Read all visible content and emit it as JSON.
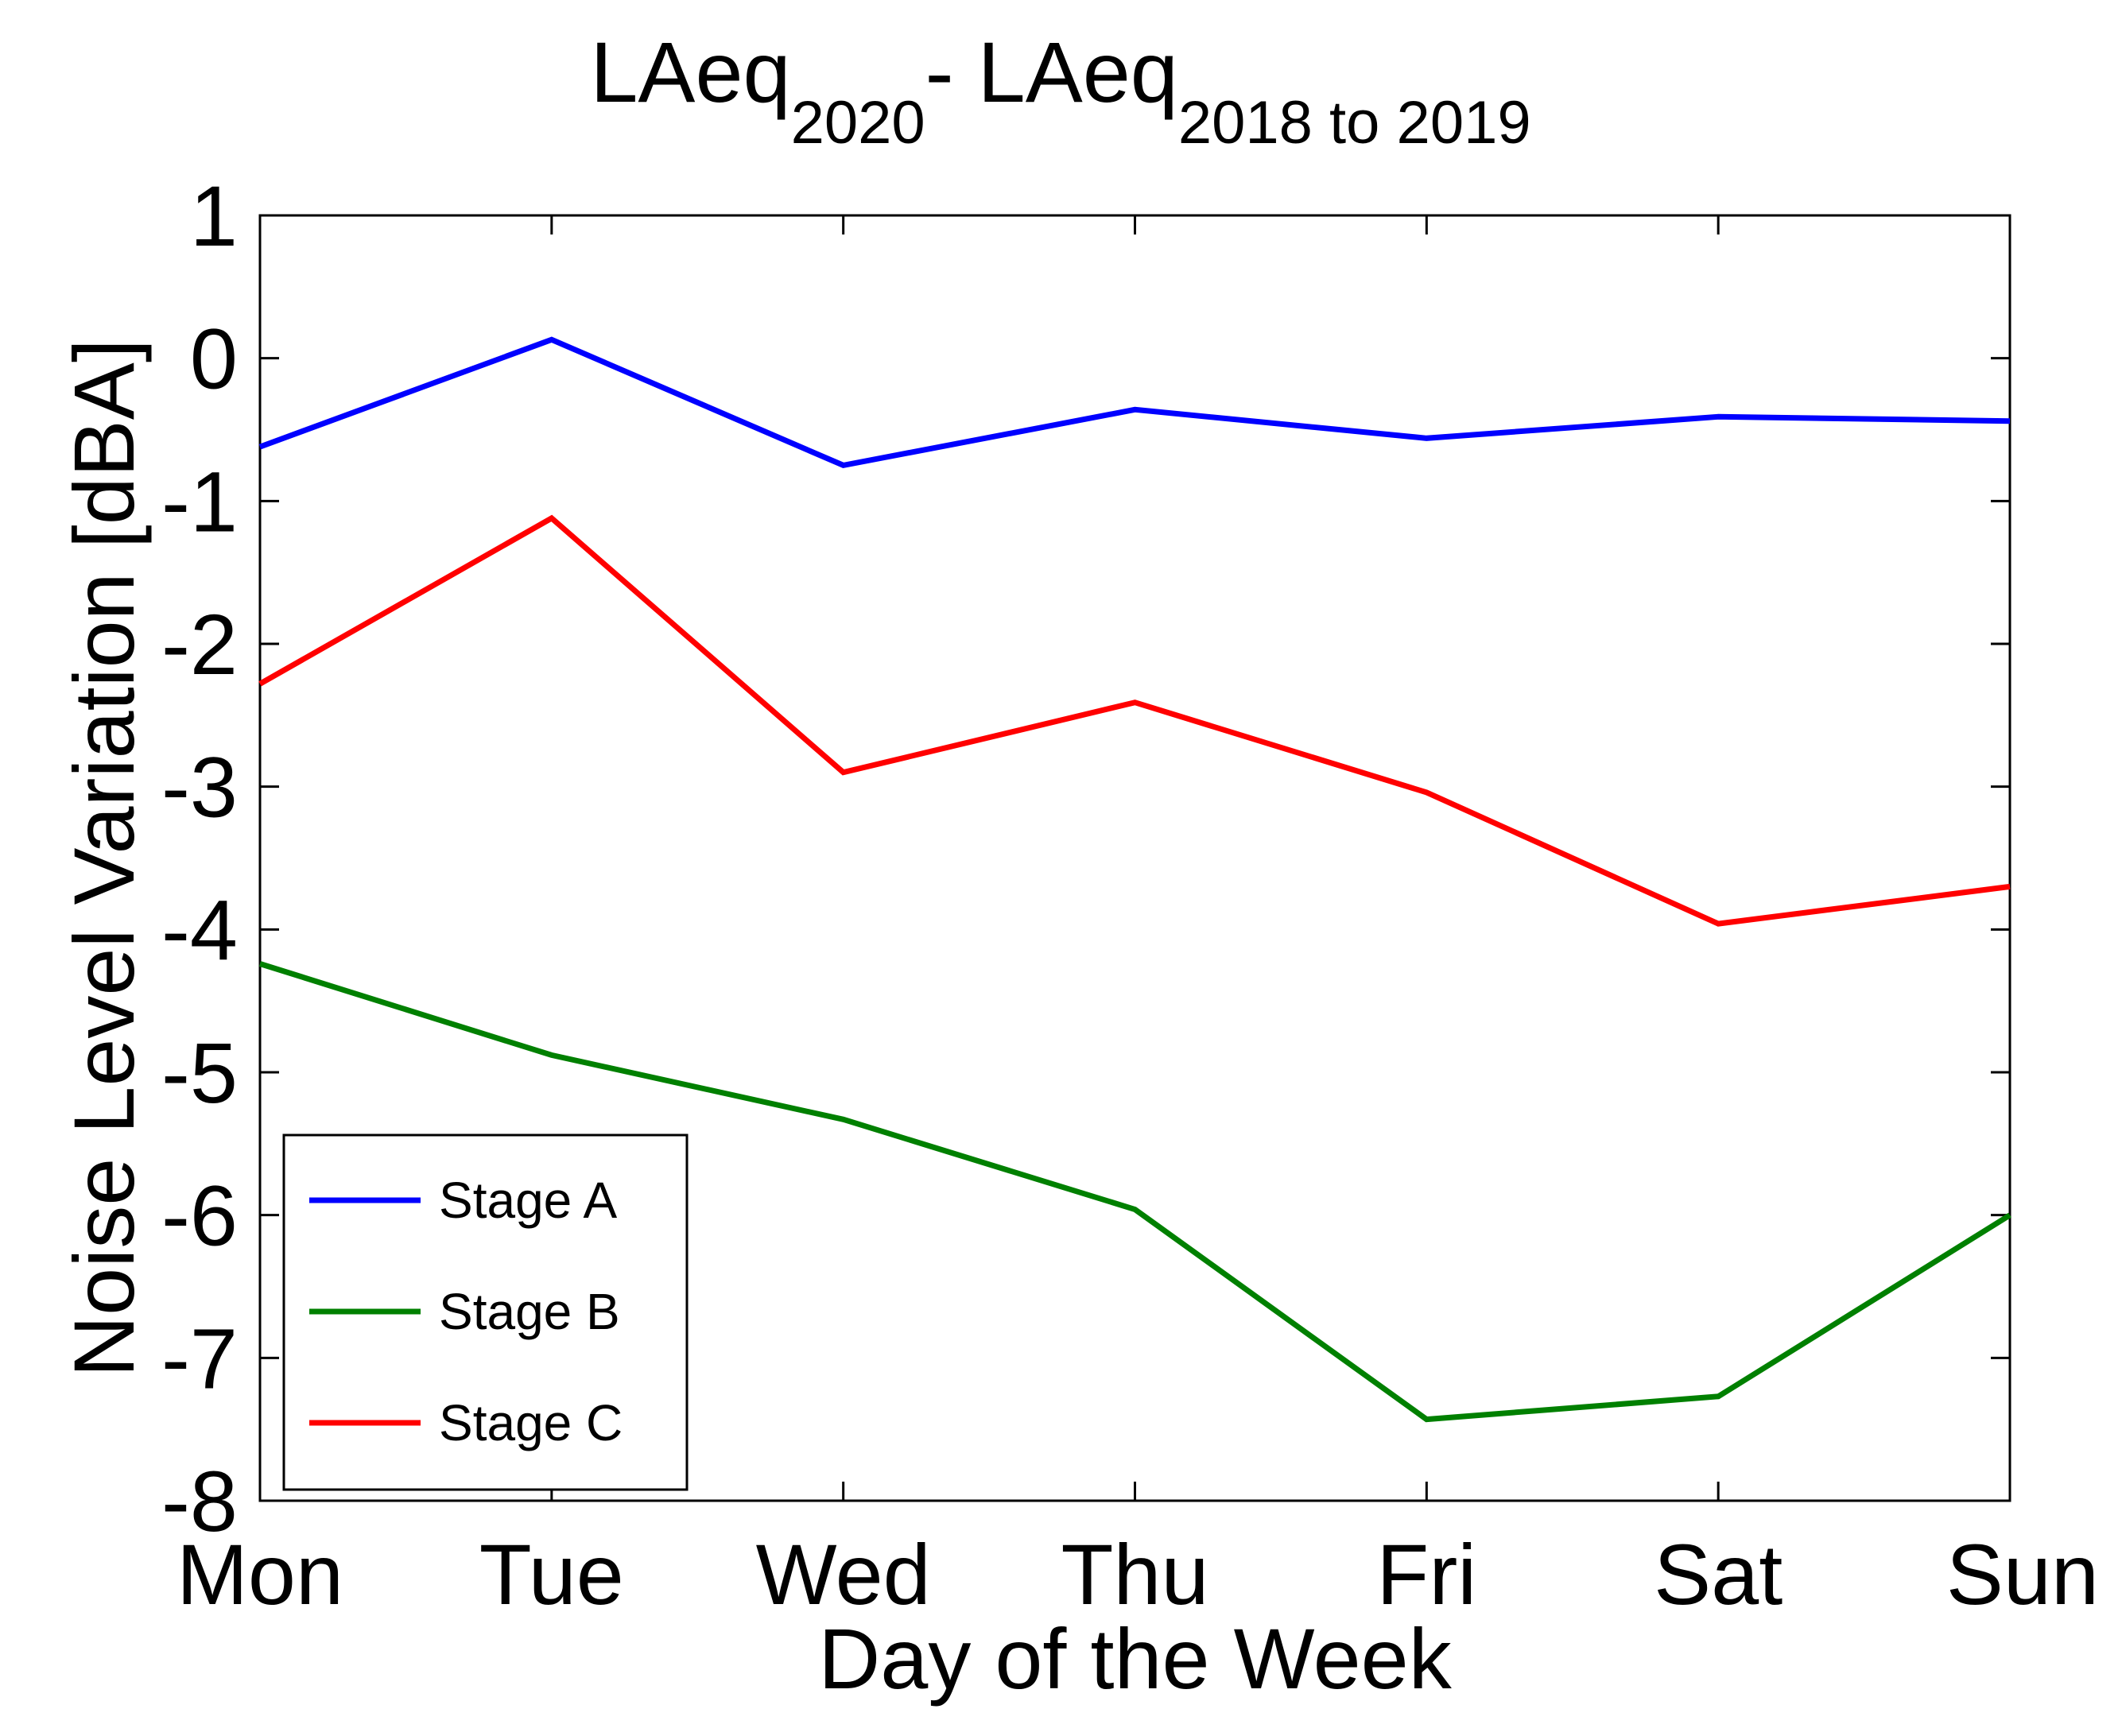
{
  "chart_data": {
    "type": "line",
    "title": {
      "parts": [
        {
          "text": "LAeq",
          "sub": "2020"
        },
        {
          "text": "- LAeq",
          "sub": "2018 to 2019"
        }
      ]
    },
    "xlabel": "Day of the Week",
    "ylabel": "Noise Level Variation [dBA]",
    "categories": [
      "Mon",
      "Tue",
      "Wed",
      "Thu",
      "Fri",
      "Sat",
      "Sun"
    ],
    "ylim": [
      -8,
      1
    ],
    "yticks": [
      1,
      0,
      -1,
      -2,
      -3,
      -4,
      -5,
      -6,
      -7,
      -8
    ],
    "grid": false,
    "legend_position": "bottom-left",
    "series": [
      {
        "name": "Stage A",
        "color": "#0000ff",
        "values": [
          -0.62,
          0.13,
          -0.75,
          -0.36,
          -0.56,
          -0.41,
          -0.44
        ]
      },
      {
        "name": "Stage B",
        "color": "#008000",
        "values": [
          -4.24,
          -4.88,
          -5.33,
          -5.96,
          -7.43,
          -7.27,
          -6.0
        ]
      },
      {
        "name": "Stage C",
        "color": "#ff0000",
        "values": [
          -2.28,
          -1.12,
          -2.9,
          -2.41,
          -3.04,
          -3.96,
          -3.7
        ]
      }
    ]
  }
}
